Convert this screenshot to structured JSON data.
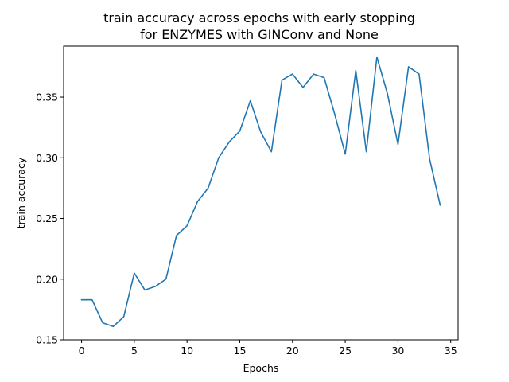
{
  "chart_data": {
    "type": "line",
    "title_lines": [
      "train accuracy across epochs with early stopping",
      "for ENZYMES with GINConv and None"
    ],
    "xlabel": "Epochs",
    "ylabel": "train accuracy",
    "xlim": [
      -1.7,
      35.7
    ],
    "ylim": [
      0.15,
      0.392
    ],
    "xticks": [
      0,
      5,
      10,
      15,
      20,
      25,
      30,
      35
    ],
    "xtick_labels": [
      "0",
      "5",
      "10",
      "15",
      "20",
      "25",
      "30",
      "35"
    ],
    "yticks": [
      0.15,
      0.2,
      0.25,
      0.3,
      0.35
    ],
    "ytick_labels": [
      "0.15",
      "0.20",
      "0.25",
      "0.30",
      "0.35"
    ],
    "grid": false,
    "series": [
      {
        "color": "#1f77b4",
        "x": [
          0,
          1,
          2,
          3,
          4,
          5,
          6,
          7,
          8,
          9,
          10,
          11,
          12,
          13,
          14,
          15,
          16,
          17,
          18,
          19,
          20,
          21,
          22,
          23,
          24,
          25,
          26,
          27,
          28,
          29,
          30,
          31,
          32,
          33,
          34
        ],
        "values": [
          0.183,
          0.183,
          0.164,
          0.161,
          0.169,
          0.205,
          0.191,
          0.194,
          0.2,
          0.236,
          0.244,
          0.264,
          0.275,
          0.3,
          0.313,
          0.322,
          0.347,
          0.321,
          0.305,
          0.364,
          0.369,
          0.358,
          0.369,
          0.366,
          0.336,
          0.303,
          0.372,
          0.305,
          0.383,
          0.353,
          0.311,
          0.375,
          0.369,
          0.299,
          0.261
        ]
      }
    ]
  }
}
